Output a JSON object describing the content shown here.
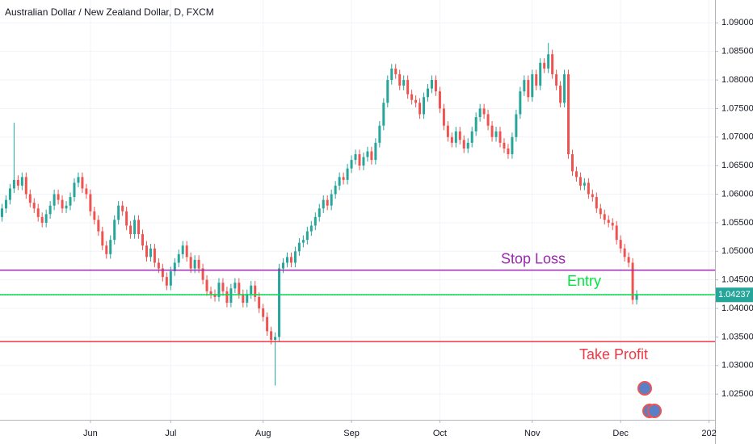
{
  "chart_data": {
    "type": "candlestick",
    "title": "Australian Dollar / New Zealand Dollar, D, FXCM",
    "x": [
      0,
      1,
      2,
      3,
      4,
      5,
      6,
      7,
      8,
      9,
      10,
      11,
      12,
      13,
      14,
      15,
      16,
      17,
      18,
      19,
      20,
      21,
      22,
      23,
      24,
      25,
      26,
      27,
      28,
      29,
      30,
      31,
      32,
      33,
      34,
      35,
      36,
      37,
      38,
      39,
      40,
      41,
      42,
      43,
      44,
      45,
      46,
      47,
      48,
      49,
      50,
      51,
      52,
      53,
      54,
      55,
      56,
      57,
      58,
      59,
      60,
      61,
      62,
      63,
      64,
      65,
      66,
      67,
      68,
      69,
      70,
      71,
      72,
      73,
      74,
      75,
      76,
      77,
      78,
      79,
      80,
      81,
      82,
      83,
      84,
      85,
      86,
      87,
      88,
      89,
      90,
      91,
      92,
      93,
      94,
      95,
      96,
      97,
      98,
      99,
      100,
      101,
      102,
      103,
      104,
      105,
      106,
      107,
      108,
      109,
      110,
      111,
      112,
      113,
      114,
      115,
      116,
      117,
      118,
      119,
      120,
      121,
      122,
      123,
      124,
      125,
      126,
      127,
      128,
      129,
      130,
      131,
      132,
      133,
      134,
      135,
      136,
      137,
      138,
      139,
      140,
      141,
      142,
      143,
      144,
      145,
      146,
      147,
      148,
      149,
      150,
      151,
      152,
      153,
      154,
      155,
      156,
      157,
      158
    ],
    "open": [
      1.056,
      1.0575,
      1.059,
      1.061,
      1.0625,
      1.0615,
      1.063,
      1.06,
      1.0585,
      1.0575,
      1.056,
      1.055,
      1.0565,
      1.058,
      1.06,
      1.059,
      1.0575,
      1.058,
      1.0595,
      1.062,
      1.063,
      1.061,
      1.06,
      1.057,
      1.0555,
      1.0535,
      1.051,
      1.0495,
      1.052,
      1.0555,
      1.058,
      1.057,
      1.0545,
      1.053,
      1.0555,
      1.053,
      1.051,
      1.049,
      1.0505,
      1.048,
      1.047,
      1.0455,
      1.044,
      1.0465,
      1.048,
      1.0495,
      1.051,
      1.049,
      1.047,
      1.0485,
      1.047,
      1.045,
      1.043,
      1.0425,
      1.042,
      1.0445,
      1.043,
      1.041,
      1.0435,
      1.0445,
      1.0425,
      1.041,
      1.0425,
      1.044,
      1.042,
      1.04,
      1.0385,
      1.036,
      1.0345,
      1.035,
      1.047,
      1.048,
      1.049,
      1.048,
      1.05,
      1.0515,
      1.052,
      1.0535,
      1.0545,
      1.056,
      1.0575,
      1.059,
      1.058,
      1.06,
      1.0615,
      1.063,
      1.0625,
      1.0645,
      1.066,
      1.067,
      1.065,
      1.0665,
      1.0675,
      1.066,
      1.069,
      1.072,
      1.076,
      1.08,
      1.082,
      1.081,
      1.079,
      1.08,
      1.0775,
      1.0765,
      1.076,
      1.074,
      1.077,
      1.0785,
      1.08,
      1.078,
      1.075,
      1.072,
      1.07,
      1.069,
      1.071,
      1.0695,
      1.068,
      1.069,
      1.071,
      1.0735,
      1.075,
      1.074,
      1.072,
      1.07,
      1.071,
      1.069,
      1.068,
      1.067,
      1.07,
      1.074,
      1.078,
      1.08,
      1.077,
      1.081,
      1.079,
      1.083,
      1.082,
      1.0845,
      1.081,
      1.079,
      1.076,
      1.081,
      1.067,
      1.064,
      1.063,
      1.0615,
      1.062,
      1.06,
      1.0595,
      1.0575,
      1.0565,
      1.0555,
      1.055,
      1.0545,
      1.052,
      1.0505,
      1.049,
      1.048,
      1.0415
    ],
    "high": [
      1.0583,
      1.0598,
      1.0618,
      1.0725,
      1.0633,
      1.0638,
      1.0638,
      1.0608,
      1.0593,
      1.0583,
      1.0568,
      1.0573,
      1.0588,
      1.0608,
      1.0608,
      1.0598,
      1.0588,
      1.0603,
      1.0628,
      1.0638,
      1.0638,
      1.0618,
      1.0608,
      1.0578,
      1.0563,
      1.0543,
      1.0518,
      1.0528,
      1.0563,
      1.0588,
      1.0588,
      1.0578,
      1.0553,
      1.0563,
      1.0563,
      1.0538,
      1.0518,
      1.0513,
      1.0513,
      1.0488,
      1.0478,
      1.0463,
      1.0473,
      1.0488,
      1.0503,
      1.0518,
      1.0518,
      1.0498,
      1.0493,
      1.0493,
      1.0478,
      1.0458,
      1.0438,
      1.0433,
      1.0453,
      1.0453,
      1.0438,
      1.0443,
      1.0453,
      1.0453,
      1.0433,
      1.0433,
      1.0448,
      1.0448,
      1.0428,
      1.0408,
      1.0393,
      1.0368,
      1.0358,
      1.0478,
      1.0488,
      1.0498,
      1.0498,
      1.0508,
      1.0523,
      1.0528,
      1.0543,
      1.0553,
      1.0568,
      1.0583,
      1.0598,
      1.0598,
      1.0608,
      1.0623,
      1.0638,
      1.0638,
      1.0653,
      1.0668,
      1.0678,
      1.0678,
      1.0673,
      1.0683,
      1.0683,
      1.0698,
      1.0728,
      1.0768,
      1.0808,
      1.0828,
      1.0828,
      1.0818,
      1.0808,
      1.0808,
      1.0783,
      1.0773,
      1.0768,
      1.0778,
      1.0793,
      1.0808,
      1.0808,
      1.0788,
      1.0758,
      1.0728,
      1.0708,
      1.0718,
      1.0718,
      1.0703,
      1.0698,
      1.0718,
      1.0743,
      1.0758,
      1.0758,
      1.0748,
      1.0728,
      1.0718,
      1.0718,
      1.0698,
      1.0688,
      1.0708,
      1.0748,
      1.0788,
      1.0808,
      1.0808,
      1.0818,
      1.0818,
      1.0838,
      1.0838,
      1.0865,
      1.0853,
      1.0818,
      1.0798,
      1.0818,
      1.0818,
      1.0678,
      1.0648,
      1.0638,
      1.0628,
      1.0628,
      1.0608,
      1.0603,
      1.0583,
      1.0573,
      1.0563,
      1.0558,
      1.0553,
      1.0528,
      1.0513,
      1.0498,
      1.0488,
      1.0432
    ],
    "low": [
      1.0552,
      1.0567,
      1.0582,
      1.0602,
      1.0607,
      1.0607,
      1.0592,
      1.0577,
      1.0567,
      1.0552,
      1.0542,
      1.0542,
      1.0557,
      1.0572,
      1.0582,
      1.0567,
      1.0567,
      1.0572,
      1.0587,
      1.0612,
      1.0602,
      1.0592,
      1.0562,
      1.0547,
      1.0527,
      1.0502,
      1.0487,
      1.0487,
      1.0512,
      1.0547,
      1.0562,
      1.0537,
      1.0522,
      1.0522,
      1.0522,
      1.0502,
      1.0482,
      1.0482,
      1.0472,
      1.0462,
      1.0447,
      1.0432,
      1.0432,
      1.0457,
      1.0472,
      1.0487,
      1.0482,
      1.0462,
      1.0462,
      1.0462,
      1.0442,
      1.0422,
      1.0417,
      1.0412,
      1.0412,
      1.0422,
      1.0402,
      1.0402,
      1.0427,
      1.0417,
      1.0402,
      1.0402,
      1.0417,
      1.0412,
      1.0392,
      1.0377,
      1.0352,
      1.0337,
      1.0265,
      1.0342,
      1.0462,
      1.0472,
      1.0472,
      1.0472,
      1.0492,
      1.0507,
      1.0512,
      1.0527,
      1.0537,
      1.0552,
      1.0567,
      1.0572,
      1.0572,
      1.0592,
      1.0607,
      1.0617,
      1.0617,
      1.0637,
      1.0652,
      1.0642,
      1.0642,
      1.0657,
      1.0652,
      1.0652,
      1.0682,
      1.0712,
      1.0752,
      1.0792,
      1.0802,
      1.0782,
      1.0782,
      1.0767,
      1.0757,
      1.0752,
      1.0732,
      1.0732,
      1.0762,
      1.0777,
      1.0772,
      1.0742,
      1.0712,
      1.0692,
      1.0682,
      1.0682,
      1.0687,
      1.0672,
      1.0672,
      1.0682,
      1.0702,
      1.0727,
      1.0732,
      1.0712,
      1.0692,
      1.0692,
      1.0682,
      1.0672,
      1.0662,
      1.0662,
      1.0692,
      1.0732,
      1.0772,
      1.0762,
      1.0762,
      1.0782,
      1.0782,
      1.0812,
      1.0812,
      1.0802,
      1.0782,
      1.0752,
      1.0752,
      1.0662,
      1.0632,
      1.0622,
      1.0607,
      1.0607,
      1.0592,
      1.0587,
      1.0567,
      1.0557,
      1.0547,
      1.0542,
      1.0537,
      1.0512,
      1.0497,
      1.0482,
      1.0472,
      1.0407,
      1.0407
    ],
    "close": [
      1.0575,
      1.059,
      1.061,
      1.0625,
      1.0615,
      1.063,
      1.06,
      1.0585,
      1.0575,
      1.056,
      1.055,
      1.0565,
      1.058,
      1.06,
      1.059,
      1.0575,
      1.058,
      1.0595,
      1.062,
      1.063,
      1.061,
      1.06,
      1.057,
      1.0555,
      1.0535,
      1.051,
      1.0495,
      1.052,
      1.0555,
      1.058,
      1.057,
      1.0545,
      1.053,
      1.0555,
      1.053,
      1.051,
      1.049,
      1.0505,
      1.048,
      1.047,
      1.0455,
      1.044,
      1.0465,
      1.048,
      1.0495,
      1.051,
      1.049,
      1.047,
      1.0485,
      1.047,
      1.045,
      1.043,
      1.0425,
      1.042,
      1.0445,
      1.043,
      1.041,
      1.0435,
      1.0445,
      1.0425,
      1.041,
      1.0425,
      1.044,
      1.042,
      1.04,
      1.0385,
      1.036,
      1.0345,
      1.035,
      1.047,
      1.048,
      1.049,
      1.048,
      1.05,
      1.0515,
      1.052,
      1.0535,
      1.0545,
      1.056,
      1.0575,
      1.059,
      1.058,
      1.06,
      1.0615,
      1.063,
      1.0625,
      1.0645,
      1.066,
      1.067,
      1.065,
      1.0665,
      1.0675,
      1.066,
      1.069,
      1.072,
      1.076,
      1.08,
      1.082,
      1.081,
      1.079,
      1.08,
      1.0775,
      1.0765,
      1.076,
      1.074,
      1.077,
      1.0785,
      1.08,
      1.078,
      1.075,
      1.072,
      1.07,
      1.069,
      1.071,
      1.0695,
      1.068,
      1.069,
      1.071,
      1.0735,
      1.075,
      1.074,
      1.072,
      1.07,
      1.071,
      1.069,
      1.068,
      1.067,
      1.07,
      1.074,
      1.078,
      1.08,
      1.077,
      1.081,
      1.079,
      1.083,
      1.082,
      1.0845,
      1.081,
      1.079,
      1.076,
      1.081,
      1.067,
      1.064,
      1.063,
      1.0615,
      1.062,
      1.06,
      1.0595,
      1.0575,
      1.0565,
      1.0555,
      1.055,
      1.0545,
      1.052,
      1.0505,
      1.049,
      1.048,
      1.0415,
      1.0424
    ],
    "up_color": "#26a69a",
    "down_color": "#ef5350",
    "xlim": [
      -0.5,
      177.5
    ],
    "xticks": [
      {
        "value": 22,
        "label": "Jun"
      },
      {
        "value": 42,
        "label": "Jul"
      },
      {
        "value": 65,
        "label": "Aug"
      },
      {
        "value": 87,
        "label": "Sep"
      },
      {
        "value": 109,
        "label": "Oct"
      },
      {
        "value": 132,
        "label": "Nov"
      },
      {
        "value": 154,
        "label": "Dec"
      },
      {
        "value": 176,
        "label": "202"
      }
    ],
    "ylim": [
      1.0205,
      1.094
    ],
    "yticks": [
      {
        "value": 1.025,
        "label": "1.02500"
      },
      {
        "value": 1.03,
        "label": "1.03000"
      },
      {
        "value": 1.035,
        "label": "1.03500"
      },
      {
        "value": 1.04,
        "label": "1.04000"
      },
      {
        "value": 1.045,
        "label": "1.04500"
      },
      {
        "value": 1.05,
        "label": "1.05000"
      },
      {
        "value": 1.055,
        "label": "1.05500"
      },
      {
        "value": 1.06,
        "label": "1.06000"
      },
      {
        "value": 1.065,
        "label": "1.06500"
      },
      {
        "value": 1.07,
        "label": "1.07000"
      },
      {
        "value": 1.075,
        "label": "1.07500"
      },
      {
        "value": 1.08,
        "label": "1.08000"
      },
      {
        "value": 1.085,
        "label": "1.08500"
      },
      {
        "value": 1.09,
        "label": "1.09000"
      }
    ],
    "grid": true,
    "levels": [
      {
        "label": "Stop Loss",
        "value": 1.0467,
        "color": "#9c27b0"
      },
      {
        "label": "Entry",
        "value": 1.0424,
        "color": "#00e640"
      },
      {
        "label": "Take Profit",
        "value": 1.0342,
        "color": "#f23645"
      }
    ],
    "last_price": 1.04237
  }
}
